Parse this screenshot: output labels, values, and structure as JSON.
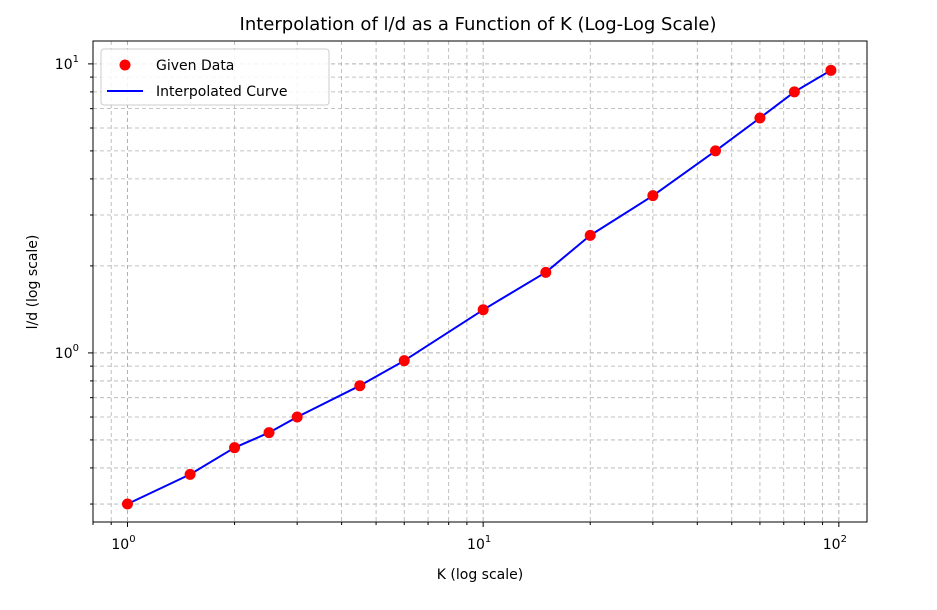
{
  "chart_data": {
    "type": "line",
    "title": "Interpolation of l/d as a Function of K (Log-Log Scale)",
    "xlabel": "K (log scale)",
    "ylabel": "l/d (log scale)",
    "xscale": "log",
    "yscale": "log",
    "xlim": [
      0.8,
      120
    ],
    "ylim": [
      0.26,
      12
    ],
    "grid": true,
    "grid_style": "dashed",
    "legend_position": "top-left",
    "x_ticks": [
      {
        "base": "10",
        "exp": "0",
        "value": 1
      },
      {
        "base": "10",
        "exp": "1",
        "value": 10
      },
      {
        "base": "10",
        "exp": "2",
        "value": 100
      }
    ],
    "y_ticks": [
      {
        "base": "10",
        "exp": "0",
        "value": 1
      },
      {
        "base": "10",
        "exp": "1",
        "value": 10
      }
    ],
    "series": [
      {
        "name": "Given Data",
        "kind": "scatter",
        "color": "#ff0000",
        "x": [
          1,
          1.5,
          2,
          2.5,
          3,
          4.5,
          6,
          10,
          15,
          20,
          30,
          45,
          60,
          75,
          95
        ],
        "y": [
          0.3,
          0.38,
          0.47,
          0.53,
          0.6,
          0.77,
          0.94,
          1.41,
          1.9,
          2.55,
          3.5,
          5.0,
          6.5,
          8.0,
          9.5
        ]
      },
      {
        "name": "Interpolated Curve",
        "kind": "line",
        "color": "#0000ff",
        "x": [
          1,
          1.5,
          2,
          2.5,
          3,
          4.5,
          6,
          10,
          15,
          20,
          30,
          45,
          60,
          75,
          95
        ],
        "y": [
          0.3,
          0.38,
          0.47,
          0.53,
          0.6,
          0.77,
          0.94,
          1.41,
          1.9,
          2.55,
          3.5,
          5.0,
          6.5,
          8.0,
          9.5
        ]
      }
    ]
  }
}
